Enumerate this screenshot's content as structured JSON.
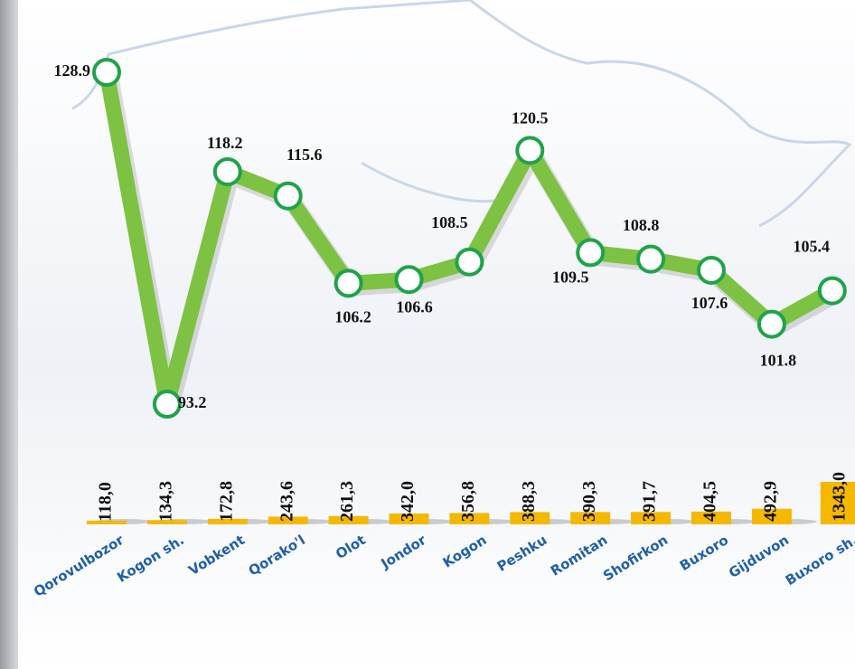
{
  "chart_data": [
    {
      "type": "line",
      "color": "#7dc242",
      "marker_color": "#1fa34a",
      "values": [
        128.9,
        93.2,
        118.2,
        115.6,
        106.2,
        106.6,
        108.5,
        120.5,
        109.5,
        108.8,
        107.6,
        101.8,
        105.4
      ]
    },
    {
      "type": "bar",
      "color": "#f5b800",
      "categories": [
        "Qorovulbozor",
        "Kogon sh.",
        "Vobkent",
        "Qorako'l",
        "Olot",
        "Jondor",
        "Kogon",
        "Peshku",
        "Romitan",
        "Shofirkon",
        "Buxoro",
        "Gijduvon",
        "Buxoro sh."
      ],
      "values": [
        118.0,
        134.3,
        172.8,
        243.6,
        261.3,
        342.0,
        356.8,
        388.3,
        390.3,
        391.7,
        404.5,
        492.9,
        1343.0
      ],
      "value_labels": [
        "118,0",
        "134,3",
        "172,8",
        "243,6",
        "261,3",
        "342,0",
        "356,8",
        "388,3",
        "390,3",
        "391,7",
        "404,5",
        "492,9",
        "1343,0"
      ]
    }
  ]
}
